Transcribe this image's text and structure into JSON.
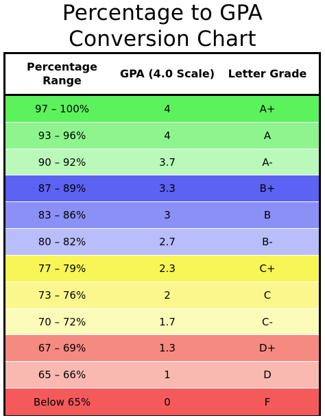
{
  "title": {
    "line1": "Percentage to GPA",
    "line2": "Conversion Chart"
  },
  "table": {
    "headers": {
      "percentage_line1": "Percentage",
      "percentage_line2": "Range",
      "gpa": "GPA (4.0 Scale)",
      "letter": "Letter Grade"
    },
    "rows": [
      {
        "range": "97 – 100%",
        "gpa": "4",
        "letter": "A+",
        "color": "#5cf25c"
      },
      {
        "range": "93 – 96%",
        "gpa": "4",
        "letter": "A",
        "color": "#8ef58e"
      },
      {
        "range": "90 – 92%",
        "gpa": "3.7",
        "letter": "A-",
        "color": "#baf9ba"
      },
      {
        "range": "87 – 89%",
        "gpa": "3.3",
        "letter": "B+",
        "color": "#5c62f2"
      },
      {
        "range": "83 – 86%",
        "gpa": "3",
        "letter": "B",
        "color": "#8a90f5"
      },
      {
        "range": "80 – 82%",
        "gpa": "2.7",
        "letter": "B-",
        "color": "#b9bdf9"
      },
      {
        "range": "77 – 79%",
        "gpa": "2.3",
        "letter": "C+",
        "color": "#f8f557"
      },
      {
        "range": "73 – 76%",
        "gpa": "2",
        "letter": "C",
        "color": "#fbf78d"
      },
      {
        "range": "70 – 72%",
        "gpa": "1.7",
        "letter": "C-",
        "color": "#fdfbb9"
      },
      {
        "range": "67 – 69%",
        "gpa": "1.3",
        "letter": "D+",
        "color": "#f58a80"
      },
      {
        "range": "65 – 66%",
        "gpa": "1",
        "letter": "D",
        "color": "#f9b9b1"
      },
      {
        "range": "Below 65%",
        "gpa": "0",
        "letter": "F",
        "color": "#f55a5a"
      }
    ]
  }
}
